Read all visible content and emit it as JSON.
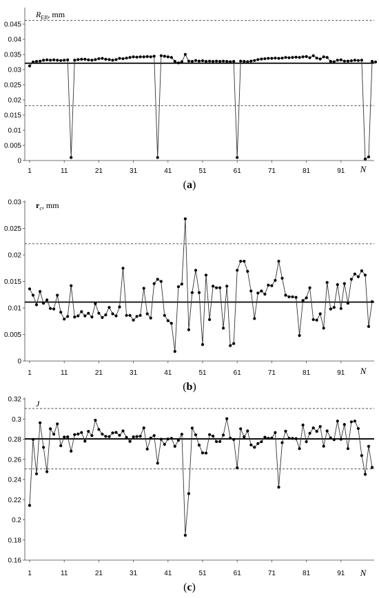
{
  "chart_data": [
    {
      "type": "line",
      "ylabel_main": "R",
      "ylabel_sub": "Eff",
      "ylabel_tail": ", mm",
      "italic_main": true,
      "xlabel": "N",
      "caption_open": "(",
      "caption_letter": "a",
      "caption_close": ")",
      "xlim": [
        1,
        100
      ],
      "ylim": [
        0,
        0.05
      ],
      "yticks": [
        0,
        0.005,
        0.01,
        0.015,
        0.02,
        0.025,
        0.03,
        0.035,
        0.04,
        0.045
      ],
      "ytick_labels": [
        "0",
        "0.005",
        "0.01",
        "0.015",
        "0.02",
        "0.025",
        "0.03",
        "0.035",
        "0.04",
        "0.045"
      ],
      "xticks": [
        1,
        11,
        21,
        31,
        41,
        51,
        61,
        71,
        81,
        91
      ],
      "xtick_labels": [
        "1",
        "11",
        "21",
        "31",
        "41",
        "51",
        "61",
        "71",
        "81",
        "91"
      ],
      "mean_line": 0.0321,
      "upper_limit": 0.0462,
      "lower_limit": 0.0181,
      "x_start": 1,
      "values": [
        0.0312,
        0.0325,
        0.0327,
        0.0328,
        0.0331,
        0.0332,
        0.0331,
        0.0332,
        0.0331,
        0.033,
        0.0331,
        0.0332,
        0.001,
        0.0331,
        0.0333,
        0.0334,
        0.0334,
        0.0332,
        0.0331,
        0.0333,
        0.0336,
        0.0337,
        0.0334,
        0.0333,
        0.0331,
        0.0333,
        0.0337,
        0.0336,
        0.0338,
        0.034,
        0.0342,
        0.0341,
        0.0342,
        0.0342,
        0.0343,
        0.0342,
        0.0344,
        0.001,
        0.0346,
        0.0344,
        0.0342,
        0.034,
        0.0327,
        0.0322,
        0.0326,
        0.035,
        0.0328,
        0.0327,
        0.033,
        0.0328,
        0.0329,
        0.0327,
        0.0328,
        0.0327,
        0.0328,
        0.0327,
        0.0328,
        0.0327,
        0.0326,
        0.0327,
        0.001,
        0.0328,
        0.0327,
        0.0326,
        0.0328,
        0.033,
        0.0333,
        0.0335,
        0.0336,
        0.0337,
        0.0337,
        0.0338,
        0.0337,
        0.0338,
        0.034,
        0.0339,
        0.034,
        0.0341,
        0.034,
        0.0342,
        0.0343,
        0.0339,
        0.0346,
        0.0338,
        0.0335,
        0.0342,
        0.034,
        0.0327,
        0.0326,
        0.0331,
        0.0332,
        0.0328,
        0.0328,
        0.0329,
        0.0331,
        0.033,
        0.0331,
        0.0005,
        0.0012,
        0.0327,
        0.0325
      ]
    },
    {
      "type": "line",
      "ylabel_main": "r",
      "ylabel_sub": "c",
      "ylabel_tail": ", mm",
      "italic_main": false,
      "xlabel": "N",
      "caption_open": "(",
      "caption_letter": "b",
      "caption_close": ")",
      "xlim": [
        1,
        100
      ],
      "ylim": [
        0,
        0.03
      ],
      "yticks": [
        0,
        0.005,
        0.01,
        0.015,
        0.02,
        0.025,
        0.03
      ],
      "ytick_labels": [
        "0",
        "0.005",
        "0.01",
        "0.015",
        "0.02",
        "0.025",
        "0.03"
      ],
      "xticks": [
        1,
        11,
        21,
        31,
        41,
        51,
        61,
        71,
        81,
        91
      ],
      "xtick_labels": [
        "1",
        "11",
        "21",
        "31",
        "41",
        "51",
        "61",
        "71",
        "81",
        "91"
      ],
      "mean_line": 0.0111,
      "upper_limit": 0.0221,
      "lower_limit": null,
      "x_start": 1,
      "values": [
        0.0136,
        0.0124,
        0.0106,
        0.0131,
        0.0109,
        0.0115,
        0.0099,
        0.0098,
        0.0124,
        0.0092,
        0.0079,
        0.0084,
        0.0142,
        0.0083,
        0.0085,
        0.0093,
        0.0085,
        0.009,
        0.0083,
        0.0108,
        0.009,
        0.0082,
        0.0087,
        0.0101,
        0.0089,
        0.0085,
        0.0102,
        0.0175,
        0.0086,
        0.0086,
        0.0077,
        0.0084,
        0.0086,
        0.0137,
        0.0089,
        0.0081,
        0.0146,
        0.0154,
        0.015,
        0.0086,
        0.0076,
        0.0071,
        0.0018,
        0.014,
        0.0145,
        0.0268,
        0.0059,
        0.0129,
        0.0171,
        0.0129,
        0.0031,
        0.0162,
        0.0078,
        0.0141,
        0.0138,
        0.0138,
        0.0062,
        0.0141,
        0.0029,
        0.0033,
        0.0171,
        0.0188,
        0.0188,
        0.0169,
        0.0132,
        0.008,
        0.0128,
        0.0132,
        0.0126,
        0.0143,
        0.0142,
        0.0152,
        0.0188,
        0.0156,
        0.0124,
        0.0121,
        0.0121,
        0.012,
        0.0048,
        0.0114,
        0.0119,
        0.0138,
        0.0078,
        0.0077,
        0.0089,
        0.0062,
        0.0148,
        0.0098,
        0.0101,
        0.0144,
        0.0099,
        0.0146,
        0.0109,
        0.0154,
        0.0164,
        0.0159,
        0.017,
        0.0162,
        0.0065,
        0.0112
      ]
    },
    {
      "type": "line",
      "ylabel_main": "J",
      "ylabel_sub": "",
      "ylabel_tail": "",
      "italic_main": true,
      "xlabel": "N",
      "caption_open": "(",
      "caption_letter": "c",
      "caption_close": ")",
      "xlim": [
        1,
        100
      ],
      "ylim": [
        0.16,
        0.32
      ],
      "yticks": [
        0.16,
        0.18,
        0.2,
        0.22,
        0.24,
        0.26,
        0.28,
        0.3,
        0.32
      ],
      "ytick_labels": [
        "0.16",
        "0.18",
        "0.2",
        "0.22",
        "0.24",
        "0.26",
        "0.28",
        "0.3",
        "0.32"
      ],
      "xticks": [
        1,
        11,
        21,
        31,
        41,
        51,
        61,
        71,
        81,
        91
      ],
      "xtick_labels": [
        "1",
        "11",
        "21",
        "31",
        "41",
        "51",
        "61",
        "71",
        "81",
        "91"
      ],
      "mean_line": 0.2803,
      "upper_limit": 0.3105,
      "lower_limit": 0.2505,
      "x_start": 1,
      "values": [
        0.2143,
        0.2798,
        0.2456,
        0.2963,
        0.2719,
        0.2478,
        0.2903,
        0.2849,
        0.2952,
        0.2735,
        0.2822,
        0.2823,
        0.2681,
        0.2845,
        0.2851,
        0.2866,
        0.278,
        0.2878,
        0.2836,
        0.2988,
        0.2897,
        0.285,
        0.2828,
        0.2826,
        0.2862,
        0.2868,
        0.2839,
        0.2882,
        0.2818,
        0.2778,
        0.2823,
        0.2827,
        0.283,
        0.2912,
        0.2702,
        0.2811,
        0.2836,
        0.2562,
        0.28,
        0.2749,
        0.2802,
        0.2809,
        0.2729,
        0.2789,
        0.2849,
        0.1846,
        0.226,
        0.291,
        0.2843,
        0.2741,
        0.2664,
        0.2662,
        0.2846,
        0.2831,
        0.2776,
        0.2777,
        0.2841,
        0.3004,
        0.281,
        0.2797,
        0.2516,
        0.2904,
        0.2823,
        0.2882,
        0.2743,
        0.2719,
        0.2757,
        0.2775,
        0.282,
        0.2809,
        0.2811,
        0.2866,
        0.2324,
        0.2766,
        0.288,
        0.2809,
        0.2808,
        0.2806,
        0.2706,
        0.2941,
        0.2775,
        0.2859,
        0.2912,
        0.2878,
        0.2926,
        0.273,
        0.2882,
        0.2812,
        0.2796,
        0.298,
        0.28,
        0.2946,
        0.2706,
        0.2972,
        0.298,
        0.2906,
        0.2638,
        0.2451,
        0.2729,
        0.252
      ]
    }
  ]
}
